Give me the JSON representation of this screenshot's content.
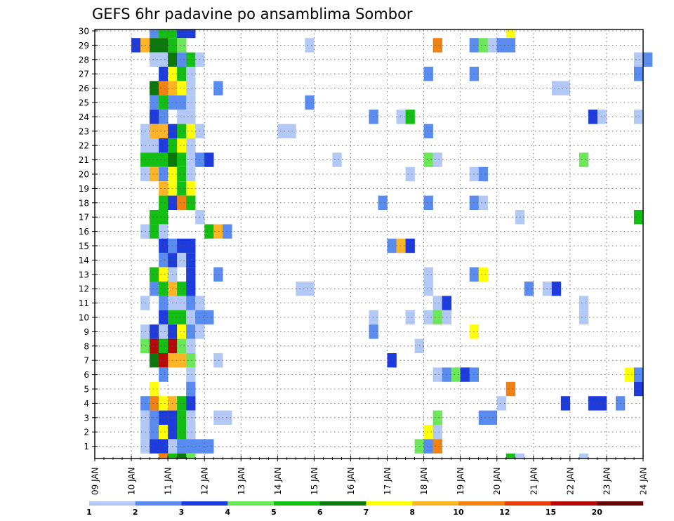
{
  "chart_data": {
    "type": "heatmap",
    "title": "GEFS 6hr padavine po ansamblima Sombor",
    "xlabel": "",
    "ylabel": "",
    "x_ticks": [
      "09 JAN",
      "10 JAN",
      "11 JAN",
      "12 JAN",
      "13 JAN",
      "14 JAN",
      "15 JAN",
      "16 JAN",
      "17 JAN",
      "18 JAN",
      "19 JAN",
      "20 JAN",
      "21 JAN",
      "22 JAN",
      "23 JAN",
      "24 JAN"
    ],
    "y_ticks": [
      1,
      2,
      3,
      4,
      5,
      6,
      7,
      8,
      9,
      10,
      11,
      12,
      13,
      14,
      15,
      16,
      17,
      18,
      19,
      20,
      21,
      22,
      23,
      24,
      25,
      26,
      27,
      28,
      29,
      30
    ],
    "x_unit": "6h steps from 09 JAN 00Z",
    "grid": true,
    "legend": {
      "placement": "bottom",
      "labels": [
        "1",
        "2",
        "3",
        "4",
        "5",
        "6",
        "7",
        "8",
        "10",
        "12",
        "15",
        "20"
      ],
      "colors": [
        "#b4c8f5",
        "#5a8cf0",
        "#1e3cdc",
        "#6ee65a",
        "#14be14",
        "#0a780a",
        "#ffff0a",
        "#ffb428",
        "#f08214",
        "#e63c0a",
        "#b40a0a",
        "#640000"
      ]
    },
    "cells": [
      {
        "m": 30,
        "t": [
          [
            6,
            2
          ],
          [
            7,
            5
          ],
          [
            8,
            5
          ],
          [
            9,
            3
          ],
          [
            10,
            3
          ],
          [
            45,
            7
          ]
        ]
      },
      {
        "m": 29,
        "t": [
          [
            4,
            3
          ],
          [
            5,
            8
          ],
          [
            6,
            6
          ],
          [
            7,
            6
          ],
          [
            8,
            5
          ],
          [
            9,
            4
          ],
          [
            23,
            1
          ],
          [
            37,
            9
          ],
          [
            41,
            2
          ],
          [
            42,
            4
          ],
          [
            43,
            1
          ],
          [
            44,
            2
          ],
          [
            45,
            2
          ]
        ]
      },
      {
        "m": 28,
        "t": [
          [
            6,
            1
          ],
          [
            7,
            1
          ],
          [
            8,
            6
          ],
          [
            9,
            2
          ],
          [
            10,
            5
          ],
          [
            11,
            1
          ],
          [
            59,
            1
          ],
          [
            60,
            2
          ]
        ]
      },
      {
        "m": 27,
        "t": [
          [
            7,
            3
          ],
          [
            8,
            7
          ],
          [
            9,
            5
          ],
          [
            10,
            1
          ],
          [
            36,
            2
          ],
          [
            41,
            2
          ],
          [
            59,
            2
          ]
        ]
      },
      {
        "m": 26,
        "t": [
          [
            6,
            6
          ],
          [
            7,
            9
          ],
          [
            8,
            8
          ],
          [
            9,
            7
          ],
          [
            10,
            1
          ],
          [
            13,
            2
          ],
          [
            50,
            1
          ],
          [
            51,
            1
          ]
        ]
      },
      {
        "m": 25,
        "t": [
          [
            6,
            2
          ],
          [
            7,
            5
          ],
          [
            8,
            2
          ],
          [
            9,
            2
          ],
          [
            10,
            1
          ],
          [
            23,
            2
          ]
        ]
      },
      {
        "m": 24,
        "t": [
          [
            6,
            3
          ],
          [
            7,
            2
          ],
          [
            9,
            1
          ],
          [
            10,
            1
          ],
          [
            30,
            2
          ],
          [
            33,
            1
          ],
          [
            34,
            5
          ],
          [
            54,
            3
          ],
          [
            55,
            1
          ],
          [
            59,
            1
          ]
        ]
      },
      {
        "m": 23,
        "t": [
          [
            5,
            1
          ],
          [
            6,
            8
          ],
          [
            7,
            8
          ],
          [
            8,
            3
          ],
          [
            9,
            5
          ],
          [
            10,
            7
          ],
          [
            11,
            1
          ],
          [
            20,
            1
          ],
          [
            21,
            1
          ],
          [
            36,
            2
          ]
        ]
      },
      {
        "m": 22,
        "t": [
          [
            5,
            1
          ],
          [
            6,
            1
          ],
          [
            7,
            3
          ],
          [
            8,
            5
          ],
          [
            9,
            7
          ],
          [
            10,
            1
          ]
        ]
      },
      {
        "m": 21,
        "t": [
          [
            5,
            5
          ],
          [
            6,
            5
          ],
          [
            7,
            5
          ],
          [
            8,
            6
          ],
          [
            9,
            5
          ],
          [
            10,
            1
          ],
          [
            11,
            2
          ],
          [
            12,
            3
          ],
          [
            26,
            1
          ],
          [
            36,
            4
          ],
          [
            37,
            1
          ],
          [
            53,
            4
          ]
        ]
      },
      {
        "m": 20,
        "t": [
          [
            5,
            1
          ],
          [
            6,
            8
          ],
          [
            7,
            2
          ],
          [
            8,
            7
          ],
          [
            9,
            5
          ],
          [
            10,
            1
          ],
          [
            34,
            1
          ],
          [
            41,
            1
          ],
          [
            42,
            2
          ]
        ]
      },
      {
        "m": 19,
        "t": [
          [
            7,
            8
          ],
          [
            8,
            7
          ],
          [
            9,
            5
          ],
          [
            10,
            7
          ]
        ]
      },
      {
        "m": 18,
        "t": [
          [
            7,
            5
          ],
          [
            8,
            3
          ],
          [
            9,
            9
          ],
          [
            10,
            5
          ],
          [
            31,
            2
          ],
          [
            36,
            2
          ],
          [
            41,
            2
          ],
          [
            42,
            1
          ]
        ]
      },
      {
        "m": 17,
        "t": [
          [
            6,
            5
          ],
          [
            7,
            5
          ],
          [
            11,
            1
          ],
          [
            46,
            1
          ],
          [
            59,
            5
          ]
        ]
      },
      {
        "m": 16,
        "t": [
          [
            5,
            1
          ],
          [
            6,
            5
          ],
          [
            7,
            1
          ],
          [
            12,
            5
          ],
          [
            13,
            8
          ],
          [
            14,
            2
          ]
        ]
      },
      {
        "m": 15,
        "t": [
          [
            7,
            3
          ],
          [
            8,
            2
          ],
          [
            9,
            3
          ],
          [
            10,
            3
          ],
          [
            32,
            2
          ],
          [
            33,
            8
          ],
          [
            34,
            3
          ]
        ]
      },
      {
        "m": 14,
        "t": [
          [
            7,
            2
          ],
          [
            8,
            3
          ],
          [
            9,
            1
          ],
          [
            10,
            3
          ]
        ]
      },
      {
        "m": 13,
        "t": [
          [
            6,
            5
          ],
          [
            7,
            7
          ],
          [
            8,
            1
          ],
          [
            10,
            3
          ],
          [
            13,
            2
          ],
          [
            36,
            1
          ],
          [
            41,
            2
          ],
          [
            42,
            7
          ]
        ]
      },
      {
        "m": 12,
        "t": [
          [
            6,
            2
          ],
          [
            7,
            5
          ],
          [
            8,
            8
          ],
          [
            9,
            5
          ],
          [
            10,
            3
          ],
          [
            22,
            1
          ],
          [
            23,
            1
          ],
          [
            36,
            1
          ],
          [
            47,
            2
          ],
          [
            49,
            1
          ],
          [
            50,
            3
          ]
        ]
      },
      {
        "m": 11,
        "t": [
          [
            5,
            1
          ],
          [
            7,
            2
          ],
          [
            8,
            1
          ],
          [
            9,
            1
          ],
          [
            10,
            2
          ],
          [
            11,
            1
          ],
          [
            37,
            1
          ],
          [
            38,
            3
          ],
          [
            53,
            1
          ]
        ]
      },
      {
        "m": 10,
        "t": [
          [
            7,
            3
          ],
          [
            8,
            5
          ],
          [
            9,
            5
          ],
          [
            10,
            1
          ],
          [
            11,
            2
          ],
          [
            12,
            2
          ],
          [
            30,
            1
          ],
          [
            34,
            1
          ],
          [
            36,
            1
          ],
          [
            37,
            4
          ],
          [
            38,
            1
          ],
          [
            53,
            1
          ]
        ]
      },
      {
        "m": 9,
        "t": [
          [
            5,
            1
          ],
          [
            6,
            3
          ],
          [
            7,
            1
          ],
          [
            8,
            3
          ],
          [
            9,
            7
          ],
          [
            10,
            2
          ],
          [
            11,
            1
          ],
          [
            30,
            2
          ],
          [
            41,
            7
          ]
        ]
      },
      {
        "m": 8,
        "t": [
          [
            5,
            4
          ],
          [
            6,
            11
          ],
          [
            7,
            5
          ],
          [
            8,
            11
          ],
          [
            9,
            4
          ],
          [
            10,
            1
          ],
          [
            35,
            1
          ]
        ]
      },
      {
        "m": 7,
        "t": [
          [
            6,
            6
          ],
          [
            7,
            11
          ],
          [
            8,
            8
          ],
          [
            9,
            8
          ],
          [
            10,
            4
          ],
          [
            13,
            1
          ],
          [
            32,
            3
          ]
        ]
      },
      {
        "m": 6,
        "t": [
          [
            7,
            2
          ],
          [
            10,
            1
          ],
          [
            37,
            1
          ],
          [
            38,
            2
          ],
          [
            39,
            4
          ],
          [
            40,
            3
          ],
          [
            41,
            2
          ],
          [
            58,
            7
          ],
          [
            59,
            2
          ]
        ]
      },
      {
        "m": 5,
        "t": [
          [
            6,
            7
          ],
          [
            10,
            2
          ],
          [
            45,
            9
          ],
          [
            59,
            3
          ]
        ]
      },
      {
        "m": 4,
        "t": [
          [
            5,
            2
          ],
          [
            6,
            9
          ],
          [
            7,
            7
          ],
          [
            8,
            8
          ],
          [
            9,
            5
          ],
          [
            10,
            3
          ],
          [
            44,
            1
          ],
          [
            51,
            3
          ],
          [
            54,
            3
          ],
          [
            55,
            3
          ],
          [
            57,
            2
          ]
        ]
      },
      {
        "m": 3,
        "t": [
          [
            5,
            1
          ],
          [
            6,
            2
          ],
          [
            7,
            3
          ],
          [
            8,
            3
          ],
          [
            9,
            5
          ],
          [
            10,
            1
          ],
          [
            13,
            1
          ],
          [
            14,
            1
          ],
          [
            37,
            4
          ],
          [
            42,
            2
          ],
          [
            43,
            2
          ]
        ]
      },
      {
        "m": 2,
        "t": [
          [
            5,
            1
          ],
          [
            6,
            2
          ],
          [
            7,
            7
          ],
          [
            8,
            3
          ],
          [
            9,
            5
          ],
          [
            10,
            1
          ],
          [
            36,
            7
          ],
          [
            37,
            1
          ]
        ]
      },
      {
        "m": 1,
        "t": [
          [
            5,
            1
          ],
          [
            6,
            3
          ],
          [
            7,
            3
          ],
          [
            8,
            1
          ],
          [
            9,
            2
          ],
          [
            10,
            2
          ],
          [
            11,
            2
          ],
          [
            12,
            2
          ],
          [
            35,
            4
          ],
          [
            36,
            2
          ],
          [
            37,
            9
          ]
        ]
      },
      {
        "m": 0,
        "t": [
          [
            7,
            9
          ],
          [
            8,
            5
          ],
          [
            9,
            6
          ],
          [
            10,
            4
          ],
          [
            45,
            5
          ],
          [
            46,
            1
          ],
          [
            53,
            1
          ]
        ]
      }
    ]
  }
}
